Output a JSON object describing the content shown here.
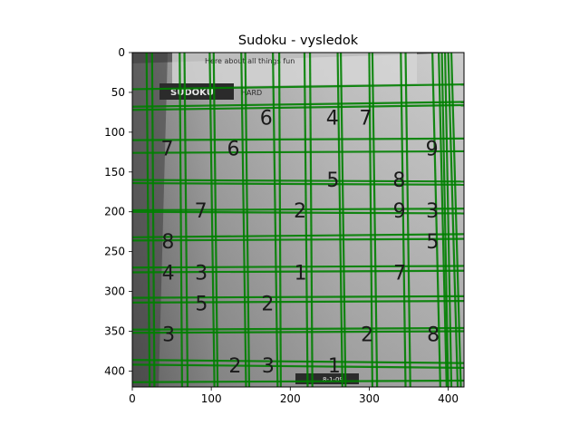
{
  "chart_data": {
    "type": "image",
    "title": "Sudoku - vysledok",
    "xlabel": "",
    "ylabel": "",
    "xlim": [
      0,
      420
    ],
    "ylim": [
      420,
      0
    ],
    "x_ticks": [
      0,
      100,
      200,
      300,
      400
    ],
    "y_ticks": [
      0,
      50,
      100,
      150,
      200,
      250,
      300,
      350,
      400
    ],
    "line_color": "#008000",
    "grid_rows": 9,
    "grid_cols": 9,
    "digits": [
      {
        "row": 0,
        "col": 4,
        "value": "6"
      },
      {
        "row": 0,
        "col": 6,
        "value": "4"
      },
      {
        "row": 0,
        "col": 7,
        "value": "7"
      },
      {
        "row": 1,
        "col": 1,
        "value": "7"
      },
      {
        "row": 1,
        "col": 3,
        "value": "6"
      },
      {
        "row": 1,
        "col": 9,
        "value": "9"
      },
      {
        "row": 2,
        "col": 6,
        "value": "5"
      },
      {
        "row": 2,
        "col": 8,
        "value": "8"
      },
      {
        "row": 3,
        "col": 2,
        "value": "7"
      },
      {
        "row": 3,
        "col": 5,
        "value": "2"
      },
      {
        "row": 3,
        "col": 8,
        "value": "9"
      },
      {
        "row": 3,
        "col": 9,
        "value": "3"
      },
      {
        "row": 4,
        "col": 1,
        "value": "8"
      },
      {
        "row": 4,
        "col": 9,
        "value": "5"
      },
      {
        "row": 5,
        "col": 1,
        "value": "4"
      },
      {
        "row": 5,
        "col": 2,
        "value": "3"
      },
      {
        "row": 5,
        "col": 5,
        "value": "1"
      },
      {
        "row": 5,
        "col": 8,
        "value": "7"
      },
      {
        "row": 6,
        "col": 2,
        "value": "5"
      },
      {
        "row": 6,
        "col": 4,
        "value": "2"
      },
      {
        "row": 7,
        "col": 1,
        "value": "3"
      },
      {
        "row": 7,
        "col": 7,
        "value": "2"
      },
      {
        "row": 7,
        "col": 9,
        "value": "8"
      },
      {
        "row": 8,
        "col": 3,
        "value": "2"
      },
      {
        "row": 8,
        "col": 4,
        "value": "3"
      },
      {
        "row": 8,
        "col": 6,
        "value": "1"
      }
    ],
    "paper_text": {
      "header_snippet": "Here about all things fun",
      "label_sudoku": "SUDOKU",
      "label_hard": "HARD",
      "date_label": "8-1-09"
    }
  }
}
